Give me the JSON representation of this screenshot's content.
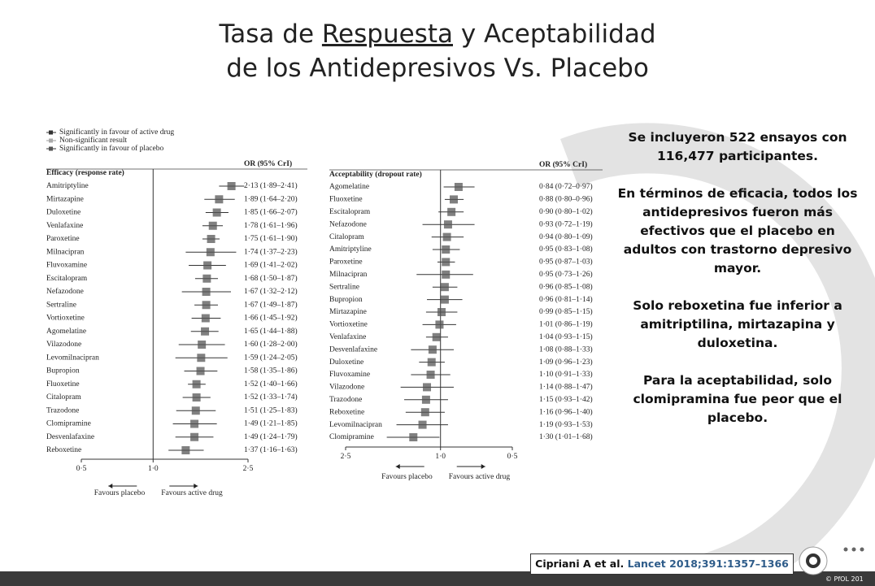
{
  "slide": {
    "title_line1_pre": "Tasa de ",
    "title_line1_underlined": "Respuesta",
    "title_line1_post": " y Aceptabilidad",
    "title_line2": "de los Antidepresivos Vs. Placebo",
    "legend": [
      "Significantly in favour of active drug",
      "Non-significant result",
      "Significantly in favour of placebo"
    ],
    "paragraphs": [
      "Se incluyeron 522 ensayos con 116,477 participantes.",
      "En términos de eficacia, todos los antidepresivos fueron más efectivos que el placebo en adultos con trastorno depresivo mayor.",
      "Solo reboxetina fue inferior a amitriptilina, mirtazapina y duloxetina.",
      "Para la aceptabilidad, solo clomipramina fue peor que el placebo."
    ],
    "citation_authors": "Cipriani A et al. ",
    "citation_journal": "Lancet 2018;391:1357–1366",
    "footer": "© PfOL 201"
  },
  "chart_data": [
    {
      "type": "forest",
      "title": "Efficacy (response rate)",
      "column_header": "OR (95% CrI)",
      "log_scale": true,
      "categories": [
        "Amitriptyline",
        "Mirtazapine",
        "Duloxetine",
        "Venlafaxine",
        "Paroxetine",
        "Milnacipran",
        "Fluvoxamine",
        "Escitalopram",
        "Nefazodone",
        "Sertraline",
        "Vortioxetine",
        "Agomelatine",
        "Vilazodone",
        "Levomilnacipran",
        "Bupropion",
        "Fluoxetine",
        "Citalopram",
        "Trazodone",
        "Clomipramine",
        "Desvenlafaxine",
        "Reboxetine"
      ],
      "values": [
        2.13,
        1.89,
        1.85,
        1.78,
        1.75,
        1.74,
        1.69,
        1.68,
        1.67,
        1.67,
        1.66,
        1.65,
        1.6,
        1.59,
        1.58,
        1.52,
        1.52,
        1.51,
        1.49,
        1.49,
        1.37
      ],
      "lower": [
        1.89,
        1.64,
        1.66,
        1.61,
        1.61,
        1.37,
        1.41,
        1.5,
        1.32,
        1.49,
        1.45,
        1.44,
        1.28,
        1.24,
        1.35,
        1.4,
        1.33,
        1.25,
        1.21,
        1.24,
        1.16
      ],
      "upper": [
        2.41,
        2.2,
        2.07,
        1.96,
        1.9,
        2.23,
        2.02,
        1.87,
        2.12,
        1.87,
        1.92,
        1.88,
        2.0,
        2.05,
        1.86,
        1.66,
        1.74,
        1.83,
        1.85,
        1.79,
        1.63
      ],
      "value_labels": [
        "2·13 (1·89–2·41)",
        "1·89 (1·64–2·20)",
        "1·85 (1·66–2·07)",
        "1·78 (1·61–1·96)",
        "1·75 (1·61–1·90)",
        "1·74 (1·37–2·23)",
        "1·69 (1·41–2·02)",
        "1·68 (1·50–1·87)",
        "1·67 (1·32–2·12)",
        "1·67 (1·49–1·87)",
        "1·66 (1·45–1·92)",
        "1·65 (1·44–1·88)",
        "1·60 (1·28–2·00)",
        "1·59 (1·24–2·05)",
        "1·58 (1·35–1·86)",
        "1·52 (1·40–1·66)",
        "1·52 (1·33–1·74)",
        "1·51 (1·25–1·83)",
        "1·49 (1·21–1·85)",
        "1·49 (1·24–1·79)",
        "1·37 (1·16–1·63)"
      ],
      "xlim": [
        0.5,
        2.5
      ],
      "xticks": [
        {
          "value": 0.5,
          "label": "0·5"
        },
        {
          "value": 1.0,
          "label": "1·0"
        },
        {
          "value": 2.5,
          "label": "2·5"
        }
      ],
      "annotations": [
        "Favours placebo",
        "Favours active drug"
      ],
      "color": "#555555"
    },
    {
      "type": "forest",
      "title": "Acceptability (dropout rate)",
      "column_header": "OR (95% CrI)",
      "log_scale": true,
      "categories": [
        "Agomelatine",
        "Fluoxetine",
        "Escitalopram",
        "Nefazodone",
        "Citalopram",
        "Amitriptyline",
        "Paroxetine",
        "Milnacipran",
        "Sertraline",
        "Bupropion",
        "Mirtazapine",
        "Vortioxetine",
        "Venlafaxine",
        "Desvenlafaxine",
        "Duloxetine",
        "Fluvoxamine",
        "Vilazodone",
        "Trazodone",
        "Reboxetine",
        "Levomilnacipran",
        "Clomipramine"
      ],
      "values": [
        0.84,
        0.88,
        0.9,
        0.93,
        0.94,
        0.95,
        0.95,
        0.95,
        0.96,
        0.96,
        0.99,
        1.01,
        1.04,
        1.08,
        1.09,
        1.1,
        1.14,
        1.15,
        1.16,
        1.19,
        1.3
      ],
      "lower": [
        0.72,
        0.8,
        0.8,
        0.72,
        0.8,
        0.83,
        0.87,
        0.73,
        0.85,
        0.81,
        0.85,
        0.86,
        0.93,
        0.88,
        0.96,
        0.91,
        0.88,
        0.93,
        0.96,
        0.93,
        1.01
      ],
      "upper": [
        0.97,
        0.96,
        1.02,
        1.19,
        1.09,
        1.08,
        1.03,
        1.26,
        1.08,
        1.14,
        1.15,
        1.19,
        1.15,
        1.33,
        1.23,
        1.33,
        1.47,
        1.42,
        1.4,
        1.53,
        1.68
      ],
      "value_labels": [
        "0·84 (0·72–0·97)",
        "0·88 (0·80–0·96)",
        "0·90 (0·80–1·02)",
        "0·93 (0·72–1·19)",
        "0·94 (0·80–1·09)",
        "0·95 (0·83–1·08)",
        "0·95 (0·87–1·03)",
        "0·95 (0·73–1·26)",
        "0·96 (0·85–1·08)",
        "0·96 (0·81–1·14)",
        "0·99 (0·85–1·15)",
        "1·01 (0·86–1·19)",
        "1·04 (0·93–1·15)",
        "1·08 (0·88–1·33)",
        "1·09 (0·96–1·23)",
        "1·10 (0·91–1·33)",
        "1·14 (0·88–1·47)",
        "1·15 (0·93–1·42)",
        "1·16 (0·96–1·40)",
        "1·19 (0·93–1·53)",
        "1·30 (1·01–1·68)"
      ],
      "xlim": [
        2.5,
        0.5
      ],
      "xticks": [
        {
          "value": 2.5,
          "label": "2·5"
        },
        {
          "value": 1.0,
          "label": "1·0"
        },
        {
          "value": 0.5,
          "label": "0·5"
        }
      ],
      "annotations": [
        "Favours placebo",
        "Favours active drug"
      ],
      "color": "#555555"
    }
  ]
}
